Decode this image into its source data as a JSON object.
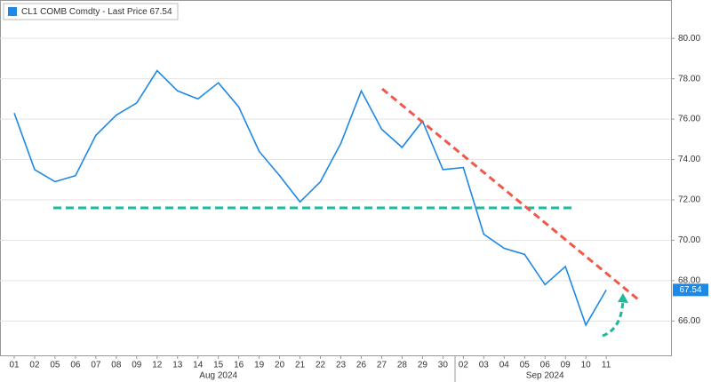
{
  "chart_data": {
    "type": "line",
    "legend": "CL1 COMB Comdty - Last Price 67.54",
    "categories": [
      "01",
      "02",
      "05",
      "06",
      "07",
      "08",
      "09",
      "12",
      "13",
      "14",
      "15",
      "16",
      "19",
      "20",
      "21",
      "22",
      "23",
      "26",
      "27",
      "28",
      "29",
      "30",
      "02",
      "03",
      "04",
      "05",
      "06",
      "09",
      "10",
      "11"
    ],
    "month_labels": [
      "Aug 2024",
      "Sep 2024"
    ],
    "series": [
      {
        "name": "CL1 COMB Comdty",
        "color": "#1e88e5",
        "values": [
          76.3,
          73.5,
          72.9,
          73.2,
          75.2,
          76.2,
          76.8,
          78.4,
          77.4,
          77.0,
          77.8,
          76.6,
          74.4,
          73.2,
          71.9,
          72.9,
          74.8,
          77.4,
          75.5,
          74.6,
          75.9,
          73.5,
          73.6,
          70.3,
          69.6,
          69.3,
          67.8,
          68.7,
          65.8,
          67.54
        ]
      }
    ],
    "ylim": [
      64.3,
      81.9
    ],
    "yticks": [
      {
        "value": 66,
        "label": "66.00"
      },
      {
        "value": 68,
        "label": "68.00"
      },
      {
        "value": 70,
        "label": "70.00"
      },
      {
        "value": 72,
        "label": "72.00"
      },
      {
        "value": 74,
        "label": "74.00"
      },
      {
        "value": 76,
        "label": "76.00"
      },
      {
        "value": 78,
        "label": "78.00"
      },
      {
        "value": 80,
        "label": "80.00"
      }
    ],
    "grid": true
  }
}
